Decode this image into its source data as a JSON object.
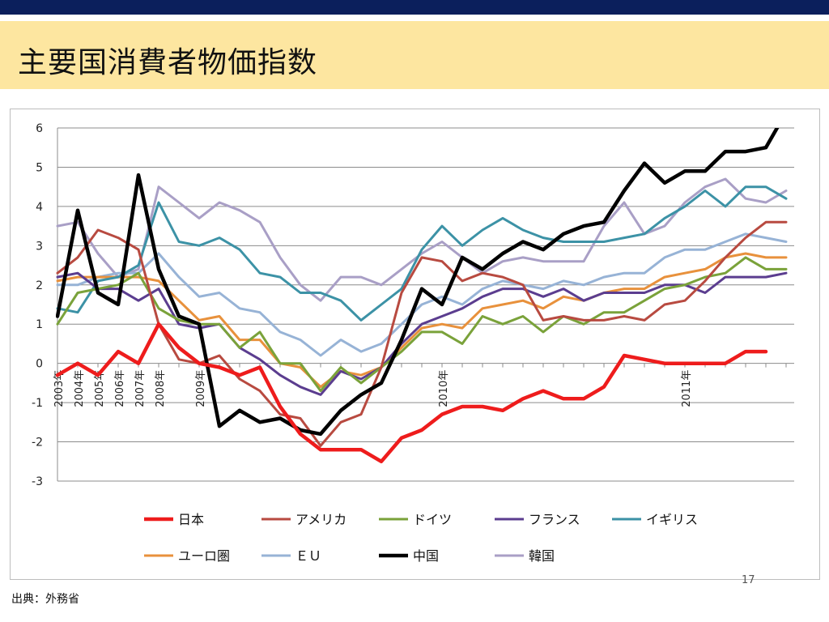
{
  "slide": {
    "title": "主要国消費者物価指数",
    "source": "出典：外務省",
    "page_number": "17"
  },
  "chart_data": {
    "type": "line",
    "title": "",
    "xlabel": "",
    "ylabel": "",
    "ylim": [
      -3,
      6
    ],
    "yticks": [
      6,
      5,
      4,
      3,
      2,
      1,
      0,
      -1,
      -2,
      -3
    ],
    "grid": true,
    "legend_position": "bottom",
    "x_labels": [
      {
        "text": "2003年",
        "at": 0
      },
      {
        "text": "2004年",
        "at": 1
      },
      {
        "text": "2005年",
        "at": 2
      },
      {
        "text": "2006年",
        "at": 3
      },
      {
        "text": "2007年",
        "at": 4
      },
      {
        "text": "2008年",
        "at": 5
      },
      {
        "text": "2009年",
        "at": 7
      },
      {
        "text": "2010年",
        "at": 19
      },
      {
        "text": "2011年",
        "at": 31
      }
    ],
    "series": [
      {
        "name": "日本",
        "color": "#ee1c1c",
        "values": [
          -0.3,
          0,
          -0.3,
          0.3,
          0,
          1.0,
          0.4,
          0,
          -0.1,
          -0.3,
          -0.1,
          -1.1,
          -1.8,
          -2.2,
          -2.2,
          -2.2,
          -2.5,
          -1.9,
          -1.7,
          -1.3,
          -1.1,
          -1.1,
          -1.2,
          -0.9,
          -0.7,
          -0.9,
          -0.9,
          -0.6,
          0.2,
          0.1,
          0,
          0,
          0,
          0,
          0.3,
          0.3
        ]
      },
      {
        "name": "アメリカ",
        "color": "#b84a40",
        "values": [
          2.3,
          2.7,
          3.4,
          3.2,
          2.9,
          1.0,
          0.1,
          0,
          0.2,
          -0.4,
          -0.7,
          -1.3,
          -1.4,
          -2.1,
          -1.5,
          -1.3,
          -0.1,
          1.8,
          2.7,
          2.6,
          2.1,
          2.3,
          2.2,
          2.0,
          1.1,
          1.2,
          1.1,
          1.1,
          1.2,
          1.1,
          1.5,
          1.6,
          2.1,
          2.7,
          3.2,
          3.6,
          3.6
        ]
      },
      {
        "name": "ドイツ",
        "color": "#7aa23a",
        "values": [
          1.0,
          1.8,
          1.9,
          2.0,
          2.3,
          1.4,
          1.1,
          1.0,
          1.0,
          0.4,
          0.8,
          0,
          0,
          -0.7,
          -0.1,
          -0.5,
          -0.1,
          0.3,
          0.8,
          0.8,
          0.5,
          1.2,
          1.0,
          1.2,
          0.8,
          1.2,
          1.0,
          1.3,
          1.3,
          1.6,
          1.9,
          2.0,
          2.2,
          2.3,
          2.7,
          2.4,
          2.4
        ]
      },
      {
        "name": "フランス",
        "color": "#5b3d8f",
        "values": [
          2.2,
          2.3,
          1.9,
          1.9,
          1.6,
          1.9,
          1.0,
          0.9,
          1.0,
          0.4,
          0.1,
          -0.3,
          -0.6,
          -0.8,
          -0.2,
          -0.4,
          -0.1,
          0.5,
          1.0,
          1.2,
          1.4,
          1.7,
          1.9,
          1.9,
          1.7,
          1.9,
          1.6,
          1.8,
          1.8,
          1.8,
          2.0,
          2.0,
          1.8,
          2.2,
          2.2,
          2.2,
          2.3
        ]
      },
      {
        "name": "イギリス",
        "color": "#3c92a6",
        "values": [
          1.4,
          1.3,
          2.1,
          2.2,
          2.5,
          4.1,
          3.1,
          3.0,
          3.2,
          2.9,
          2.3,
          2.2,
          1.8,
          1.8,
          1.6,
          1.1,
          1.5,
          1.9,
          2.9,
          3.5,
          3.0,
          3.4,
          3.7,
          3.4,
          3.2,
          3.1,
          3.1,
          3.1,
          3.2,
          3.3,
          3.7,
          4.0,
          4.4,
          4.0,
          4.5,
          4.5,
          4.2
        ]
      },
      {
        "name": "ユーロ圏",
        "color": "#e8913c",
        "values": [
          2.1,
          2.2,
          2.2,
          2.2,
          2.2,
          2.1,
          1.6,
          1.1,
          1.2,
          0.6,
          0.6,
          0,
          -0.1,
          -0.6,
          -0.2,
          -0.3,
          -0.1,
          0.4,
          0.9,
          1.0,
          0.9,
          1.4,
          1.5,
          1.6,
          1.4,
          1.7,
          1.6,
          1.8,
          1.9,
          1.9,
          2.2,
          2.3,
          2.4,
          2.7,
          2.8,
          2.7,
          2.7
        ]
      },
      {
        "name": "ＥＵ",
        "color": "#97b3d6",
        "values": [
          2.0,
          2.0,
          2.2,
          2.3,
          2.3,
          2.8,
          2.2,
          1.7,
          1.8,
          1.4,
          1.3,
          0.8,
          0.6,
          0.2,
          0.6,
          0.3,
          0.5,
          1.0,
          1.5,
          1.7,
          1.5,
          1.9,
          2.1,
          2.0,
          1.9,
          2.1,
          2.0,
          2.2,
          2.3,
          2.3,
          2.7,
          2.9,
          2.9,
          3.1,
          3.3,
          3.2,
          3.1
        ]
      },
      {
        "name": "中国",
        "color": "#000000",
        "values": [
          1.2,
          3.9,
          1.8,
          1.5,
          4.8,
          2.4,
          1.2,
          1.0,
          -1.6,
          -1.2,
          -1.5,
          -1.4,
          -1.7,
          -1.8,
          -1.2,
          -0.8,
          -0.5,
          0.6,
          1.9,
          1.5,
          2.7,
          2.4,
          2.8,
          3.1,
          2.9,
          3.3,
          3.5,
          3.6,
          4.4,
          5.1,
          4.6,
          4.9,
          4.9,
          5.4,
          5.4,
          5.5,
          6.4
        ]
      },
      {
        "name": "韓国",
        "color": "#a99fc6",
        "values": [
          3.5,
          3.6,
          2.8,
          2.2,
          2.4,
          4.5,
          4.1,
          3.7,
          4.1,
          3.9,
          3.6,
          2.7,
          2.0,
          1.6,
          2.2,
          2.2,
          2.0,
          2.4,
          2.8,
          3.1,
          2.7,
          2.3,
          2.6,
          2.7,
          2.6,
          2.6,
          2.6,
          3.5,
          4.1,
          3.3,
          3.5,
          4.1,
          4.5,
          4.7,
          4.2,
          4.1,
          4.4
        ]
      }
    ]
  }
}
